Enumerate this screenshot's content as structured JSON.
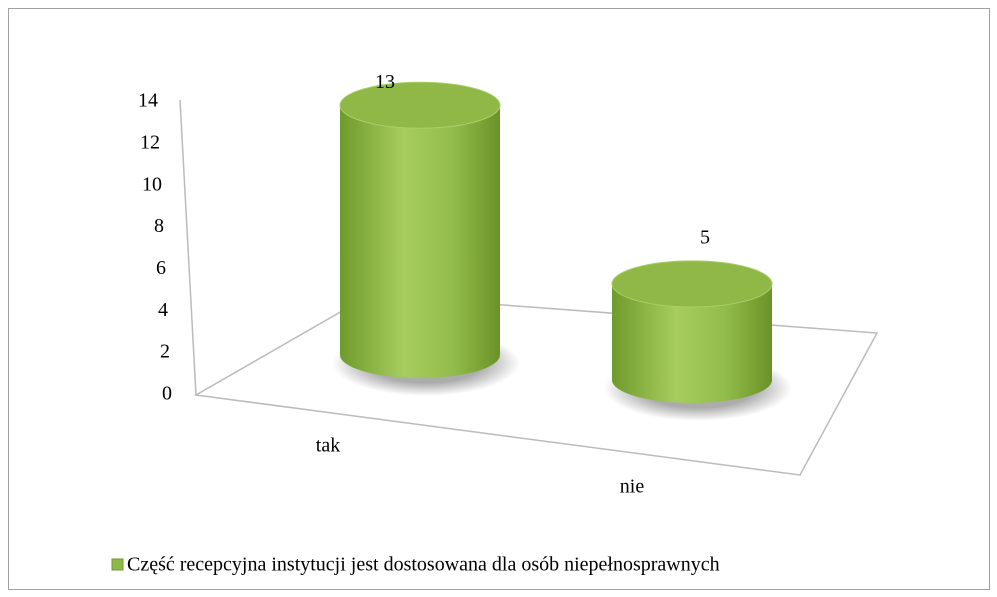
{
  "chart_data": {
    "type": "bar3d-cylinder",
    "categories": [
      "tak",
      "nie"
    ],
    "series": [
      {
        "name": "Część recepcyjna instytucji jest dostosowana dla osób niepełnosprawnych",
        "color": "#8fb847",
        "values": [
          13,
          5
        ]
      }
    ],
    "ylim": [
      0,
      14
    ],
    "yticks": [
      0,
      2,
      4,
      6,
      8,
      10,
      12,
      14
    ],
    "grid": false,
    "legend": "bottom",
    "data_labels": true
  }
}
